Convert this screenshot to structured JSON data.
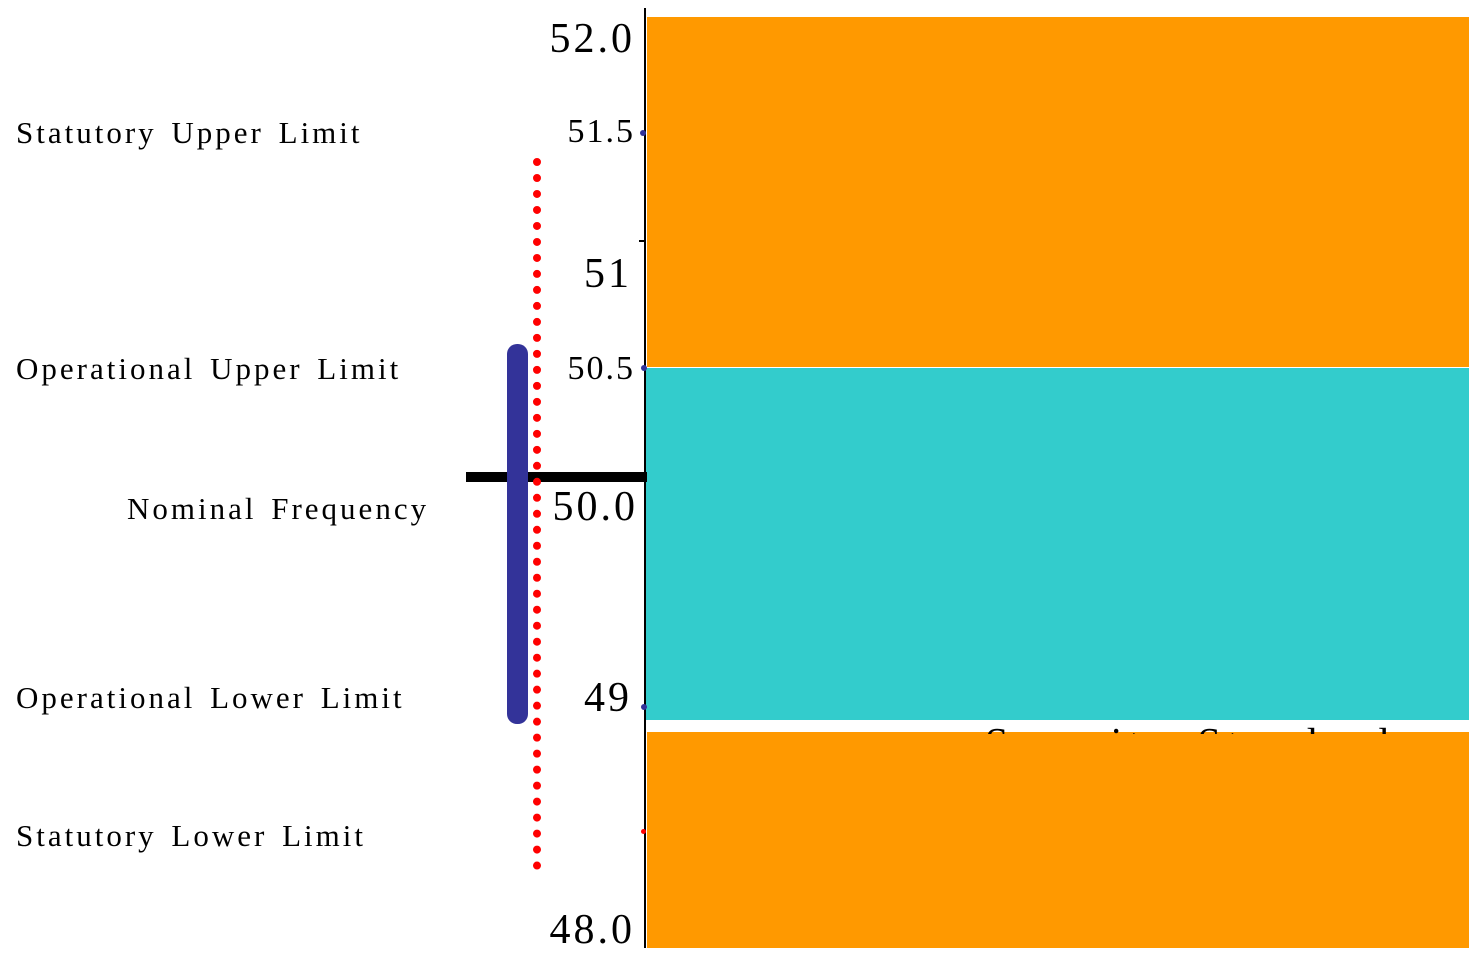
{
  "labels": {
    "statutory_upper": "Statutory Upper Limit",
    "operational_upper": "Operational Upper Limit",
    "nominal": "Nominal Frequency",
    "operational_lower": "Operational Lower Limit",
    "statutory_lower": "Statutory Lower Limit",
    "clipped_banner": "Security Standard"
  },
  "axis": {
    "ticks": [
      {
        "value": "52.0",
        "style": "big"
      },
      {
        "value": "51.5",
        "style": "small"
      },
      {
        "value": "51",
        "style": "big"
      },
      {
        "value": "50.5",
        "style": "small"
      },
      {
        "value": "50.0",
        "style": "big"
      },
      {
        "value": "49",
        "style": "big"
      },
      {
        "value": "48.0",
        "style": "big"
      }
    ]
  },
  "bands": {
    "upper_color": "#ff9900",
    "normal_color": "#33cccc",
    "lower_color": "#ff9900"
  },
  "markers": {
    "operational_bar_color": "#333399",
    "statutory_line_color": "#ff0000",
    "nominal_line_color": "#000000",
    "range_start": "49",
    "range_end": "50.5",
    "statutory_start": "48.5",
    "statutory_end": "51.5"
  }
}
